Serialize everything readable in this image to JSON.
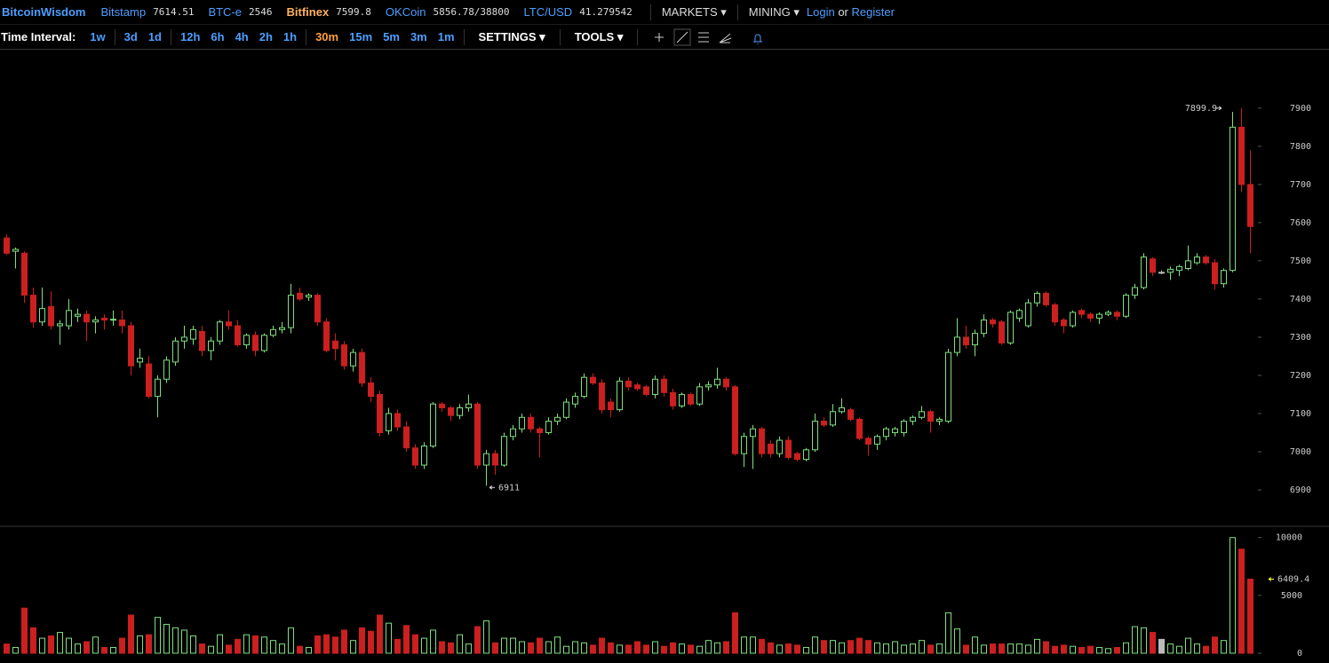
{
  "header": {
    "brand": "BitcoinWisdom",
    "markets": [
      {
        "name": "Bitstamp",
        "price": 7614.51
      },
      {
        "name": "BTC-e",
        "price": 2546
      },
      {
        "name": "Bitfinex",
        "price": 7599.8
      },
      {
        "name": "OKCoin",
        "price": "5856.78/38800"
      },
      {
        "name": "LTC/USD",
        "price": 41.279542
      }
    ],
    "menus": [
      "MARKETS",
      "MINING"
    ],
    "login": "Login",
    "or": "or",
    "register": "Register"
  },
  "toolbar": {
    "label": "Time Interval:",
    "groups": [
      [
        "1w"
      ],
      [
        "3d",
        "1d"
      ],
      [
        "12h",
        "6h",
        "4h",
        "2h",
        "1h"
      ],
      [
        "30m",
        "15m",
        "5m",
        "3m",
        "1m"
      ]
    ],
    "active": "30m",
    "menus": [
      "SETTINGS",
      "TOOLS"
    ]
  },
  "chart_data": {
    "type": "candlestick",
    "up_color": "#7ee07e",
    "down_color": "#cc1f1f",
    "doji_color": "#bbbbbb",
    "ylim": [
      6807,
      8053
    ],
    "yticks": [
      6900,
      7000,
      7100,
      7200,
      7300,
      7400,
      7500,
      7600,
      7700,
      7800,
      7900
    ],
    "volume_ylim": [
      0,
      10900
    ],
    "volume_ticks": [
      0,
      5000,
      10000
    ],
    "candles": [
      [
        7560,
        7570,
        7515,
        7520
      ],
      [
        7525,
        7535,
        7480,
        7530
      ],
      [
        7520,
        7525,
        7390,
        7410
      ],
      [
        7410,
        7430,
        7325,
        7340
      ],
      [
        7340,
        7430,
        7330,
        7375
      ],
      [
        7380,
        7420,
        7320,
        7330
      ],
      [
        7330,
        7345,
        7280,
        7335
      ],
      [
        7330,
        7400,
        7320,
        7370
      ],
      [
        7355,
        7375,
        7340,
        7360
      ],
      [
        7360,
        7370,
        7290,
        7340
      ],
      [
        7340,
        7355,
        7310,
        7345
      ],
      [
        7350,
        7360,
        7320,
        7345
      ],
      [
        7345,
        7370,
        7330,
        7347
      ],
      [
        7345,
        7370,
        7310,
        7330
      ],
      [
        7330,
        7340,
        7200,
        7225
      ],
      [
        7235,
        7270,
        7220,
        7245
      ],
      [
        7230,
        7250,
        7140,
        7145
      ],
      [
        7145,
        7200,
        7090,
        7190
      ],
      [
        7190,
        7250,
        7180,
        7240
      ],
      [
        7235,
        7300,
        7225,
        7290
      ],
      [
        7290,
        7330,
        7270,
        7300
      ],
      [
        7295,
        7330,
        7280,
        7320
      ],
      [
        7315,
        7330,
        7250,
        7265
      ],
      [
        7265,
        7300,
        7240,
        7290
      ],
      [
        7290,
        7345,
        7280,
        7340
      ],
      [
        7340,
        7370,
        7320,
        7330
      ],
      [
        7330,
        7345,
        7275,
        7280
      ],
      [
        7280,
        7310,
        7270,
        7305
      ],
      [
        7305,
        7315,
        7250,
        7265
      ],
      [
        7265,
        7310,
        7260,
        7305
      ],
      [
        7305,
        7330,
        7300,
        7320
      ],
      [
        7320,
        7340,
        7310,
        7325
      ],
      [
        7325,
        7440,
        7310,
        7410
      ],
      [
        7415,
        7430,
        7395,
        7400
      ],
      [
        7405,
        7415,
        7395,
        7410
      ],
      [
        7410,
        7415,
        7330,
        7340
      ],
      [
        7340,
        7350,
        7260,
        7265
      ],
      [
        7290,
        7310,
        7240,
        7270
      ],
      [
        7280,
        7290,
        7215,
        7225
      ],
      [
        7225,
        7270,
        7210,
        7260
      ],
      [
        7260,
        7270,
        7170,
        7180
      ],
      [
        7180,
        7195,
        7130,
        7145
      ],
      [
        7150,
        7160,
        7040,
        7050
      ],
      [
        7055,
        7115,
        7045,
        7100
      ],
      [
        7100,
        7110,
        7055,
        7065
      ],
      [
        7065,
        7080,
        7000,
        7010
      ],
      [
        7010,
        7020,
        6955,
        6965
      ],
      [
        6965,
        7025,
        6955,
        7015
      ],
      [
        7015,
        7130,
        7010,
        7125
      ],
      [
        7125,
        7130,
        7105,
        7115
      ],
      [
        7115,
        7120,
        7080,
        7095
      ],
      [
        7095,
        7125,
        7085,
        7115
      ],
      [
        7115,
        7150,
        7105,
        7125
      ],
      [
        7125,
        7130,
        6955,
        6965
      ],
      [
        6965,
        7005,
        6911,
        6995
      ],
      [
        6995,
        7005,
        6940,
        6965
      ],
      [
        6965,
        7050,
        6960,
        7040
      ],
      [
        7040,
        7070,
        7030,
        7060
      ],
      [
        7060,
        7100,
        7050,
        7090
      ],
      [
        7090,
        7100,
        7050,
        7060
      ],
      [
        7060,
        7065,
        6985,
        7050
      ],
      [
        7050,
        7090,
        7045,
        7080
      ],
      [
        7080,
        7100,
        7070,
        7090
      ],
      [
        7090,
        7140,
        7085,
        7130
      ],
      [
        7125,
        7155,
        7115,
        7145
      ],
      [
        7145,
        7205,
        7140,
        7195
      ],
      [
        7195,
        7205,
        7175,
        7180
      ],
      [
        7180,
        7190,
        7100,
        7110
      ],
      [
        7130,
        7140,
        7090,
        7110
      ],
      [
        7110,
        7195,
        7105,
        7185
      ],
      [
        7185,
        7195,
        7160,
        7170
      ],
      [
        7175,
        7180,
        7160,
        7165
      ],
      [
        7170,
        7175,
        7145,
        7150
      ],
      [
        7150,
        7200,
        7140,
        7190
      ],
      [
        7190,
        7200,
        7145,
        7155
      ],
      [
        7155,
        7165,
        7110,
        7120
      ],
      [
        7120,
        7155,
        7115,
        7150
      ],
      [
        7150,
        7155,
        7120,
        7125
      ],
      [
        7125,
        7180,
        7120,
        7170
      ],
      [
        7170,
        7185,
        7160,
        7175
      ],
      [
        7175,
        7220,
        7165,
        7190
      ],
      [
        7190,
        7195,
        7160,
        7170
      ],
      [
        7170,
        7175,
        6990,
        6995
      ],
      [
        6995,
        7050,
        6960,
        7040
      ],
      [
        7040,
        7070,
        6955,
        7060
      ],
      [
        7060,
        7065,
        6985,
        6995
      ],
      [
        7020,
        7030,
        6985,
        6995
      ],
      [
        6995,
        7040,
        6985,
        7030
      ],
      [
        7030,
        7040,
        6980,
        6985
      ],
      [
        6995,
        7000,
        6975,
        6980
      ],
      [
        6980,
        7010,
        6975,
        7005
      ],
      [
        7005,
        7100,
        7000,
        7080
      ],
      [
        7080,
        7090,
        7065,
        7070
      ],
      [
        7070,
        7125,
        7065,
        7105
      ],
      [
        7105,
        7140,
        7100,
        7115
      ],
      [
        7110,
        7115,
        7080,
        7085
      ],
      [
        7085,
        7090,
        7030,
        7035
      ],
      [
        7035,
        7040,
        6990,
        7020
      ],
      [
        7020,
        7045,
        7005,
        7040
      ],
      [
        7040,
        7065,
        7030,
        7060
      ],
      [
        7050,
        7065,
        7040,
        7060
      ],
      [
        7050,
        7085,
        7040,
        7080
      ],
      [
        7080,
        7095,
        7070,
        7090
      ],
      [
        7090,
        7120,
        7085,
        7105
      ],
      [
        7105,
        7110,
        7050,
        7080
      ],
      [
        7080,
        7090,
        7070,
        7085
      ],
      [
        7080,
        7270,
        7075,
        7260
      ],
      [
        7260,
        7350,
        7250,
        7300
      ],
      [
        7300,
        7330,
        7270,
        7280
      ],
      [
        7280,
        7320,
        7250,
        7310
      ],
      [
        7310,
        7360,
        7300,
        7345
      ],
      [
        7345,
        7350,
        7325,
        7335
      ],
      [
        7340,
        7345,
        7280,
        7285
      ],
      [
        7285,
        7370,
        7280,
        7365
      ],
      [
        7350,
        7375,
        7340,
        7370
      ],
      [
        7330,
        7400,
        7325,
        7390
      ],
      [
        7390,
        7420,
        7380,
        7415
      ],
      [
        7415,
        7420,
        7380,
        7385
      ],
      [
        7385,
        7390,
        7330,
        7340
      ],
      [
        7345,
        7350,
        7310,
        7330
      ],
      [
        7330,
        7370,
        7325,
        7365
      ],
      [
        7370,
        7375,
        7350,
        7360
      ],
      [
        7360,
        7365,
        7340,
        7350
      ],
      [
        7350,
        7365,
        7335,
        7360
      ],
      [
        7360,
        7370,
        7355,
        7365
      ],
      [
        7365,
        7370,
        7345,
        7355
      ],
      [
        7355,
        7415,
        7350,
        7410
      ],
      [
        7410,
        7440,
        7400,
        7430
      ],
      [
        7430,
        7520,
        7425,
        7510
      ],
      [
        7505,
        7510,
        7460,
        7470
      ],
      [
        7470,
        7475,
        7465,
        7470
      ],
      [
        7470,
        7485,
        7450,
        7478
      ],
      [
        7475,
        7490,
        7460,
        7485
      ],
      [
        7480,
        7540,
        7475,
        7500
      ],
      [
        7495,
        7520,
        7490,
        7510
      ],
      [
        7510,
        7515,
        7490,
        7495
      ],
      [
        7495,
        7505,
        7425,
        7440
      ],
      [
        7440,
        7480,
        7430,
        7475
      ],
      [
        7475,
        7890,
        7470,
        7850
      ],
      [
        7850,
        7899.9,
        7680,
        7700
      ],
      [
        7700,
        7790,
        7520,
        7590
      ]
    ],
    "volume": [
      800,
      500,
      3900,
      2200,
      1300,
      1500,
      1800,
      1300,
      800,
      1000,
      1400,
      500,
      500,
      1300,
      3300,
      1500,
      1600,
      3100,
      2500,
      2200,
      2000,
      1500,
      800,
      600,
      1600,
      700,
      1200,
      1600,
      1500,
      1400,
      1100,
      800,
      2200,
      600,
      500,
      1500,
      1600,
      1400,
      2000,
      1100,
      2200,
      1900,
      3300,
      2600,
      1200,
      2400,
      1600,
      1300,
      2000,
      1000,
      900,
      1600,
      800,
      2300,
      2800,
      900,
      1300,
      1300,
      1000,
      900,
      1300,
      1000,
      1400,
      600,
      1000,
      900,
      700,
      1300,
      900,
      700,
      700,
      1000,
      700,
      1000,
      600,
      900,
      800,
      700,
      600,
      1100,
      900,
      1000,
      3500,
      1400,
      1400,
      1200,
      900,
      700,
      800,
      700,
      500,
      1400,
      1100,
      1100,
      900,
      1100,
      1300,
      1100,
      900,
      800,
      1000,
      700,
      800,
      1100,
      700,
      800,
      3500,
      2100,
      700,
      1400,
      700,
      800,
      800,
      800,
      800,
      700,
      1200,
      1000,
      600,
      700,
      600,
      500,
      600,
      500,
      400,
      500,
      900,
      2300,
      2200,
      1800,
      1200,
      800,
      600,
      1300,
      800,
      600,
      1400,
      1100,
      10000,
      9000,
      6409.4
    ]
  }
}
